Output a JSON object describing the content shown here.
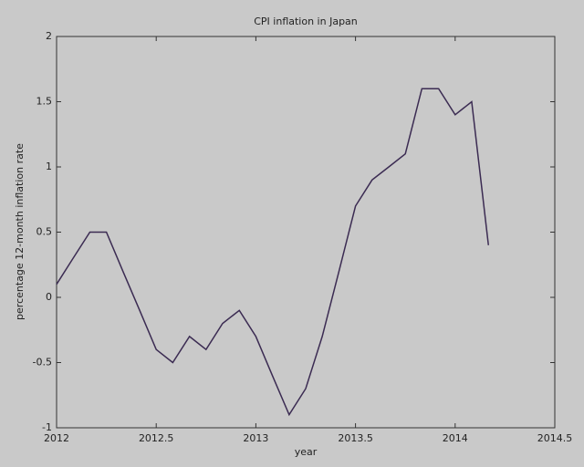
{
  "chart_data": {
    "type": "line",
    "title": "CPI inflation in Japan",
    "x_label": "year",
    "y_label": "percentage 12-month inflation rate",
    "x": [
      2012,
      2012.083,
      2012.167,
      2012.25,
      2012.333,
      2012.417,
      2012.5,
      2012.583,
      2012.667,
      2012.75,
      2012.833,
      2012.917,
      2013,
      2013.083,
      2013.167,
      2013.25,
      2013.333,
      2013.417,
      2013.5,
      2013.583,
      2013.667,
      2013.75,
      2013.833,
      2013.917,
      2014,
      2014.083,
      2014.167
    ],
    "values": [
      0.1,
      0.3,
      0.5,
      0.5,
      0.2,
      -0.1,
      -0.4,
      -0.5,
      -0.3,
      -0.4,
      -0.2,
      -0.1,
      -0.3,
      -0.6,
      -0.9,
      -0.7,
      -0.3,
      0.2,
      0.7,
      0.9,
      1.0,
      1.1,
      1.6,
      1.6,
      1.4,
      1.5,
      0.4
    ],
    "color": "#3b2b52",
    "xlim": [
      2012,
      2014.5
    ],
    "xticks": [
      2012,
      2012.5,
      2013,
      2013.5,
      2014,
      2014.5
    ],
    "ylim": [
      -1,
      2
    ],
    "yticks": [
      -1,
      -0.5,
      0,
      0.5,
      1,
      1.5,
      2
    ]
  }
}
